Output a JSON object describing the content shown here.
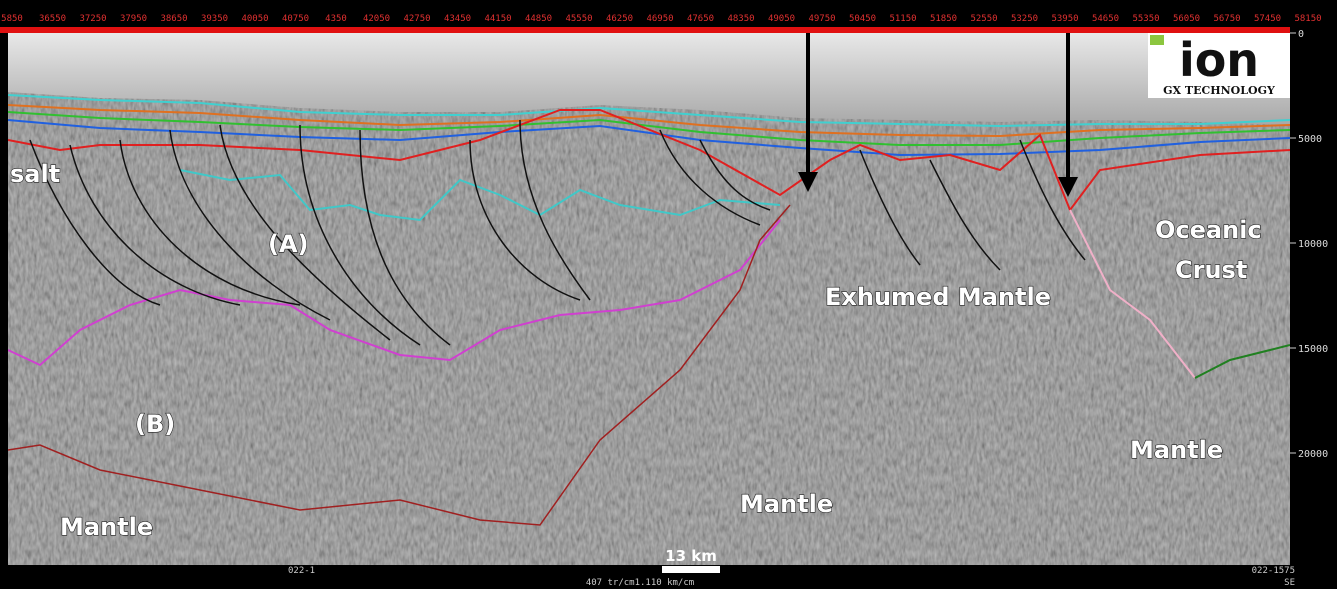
{
  "top_axis": {
    "labels": [
      "5850",
      "36550",
      "37250",
      "37950",
      "38650",
      "39350",
      "40050",
      "40750",
      "4350",
      "42050",
      "42750",
      "43450",
      "44150",
      "44850",
      "45550",
      "46250",
      "46950",
      "47650",
      "48350",
      "49050",
      "49750",
      "50450",
      "51150",
      "51850",
      "52550",
      "53250",
      "53950",
      "54650",
      "55350",
      "56050",
      "56750",
      "57450",
      "58150"
    ]
  },
  "depth_axis": {
    "labels": [
      "0",
      "5000",
      "10000",
      "15000",
      "20000"
    ]
  },
  "logo": {
    "name": "ion",
    "subtitle": "GX TECHNOLOGY"
  },
  "annotations": {
    "salt": "salt",
    "a": "(A)",
    "b": "(B)",
    "mantle_left": "Mantle",
    "mantle_center": "Mantle",
    "exhumed": "Exhumed Mantle",
    "oceanic_crust": [
      "Oceanic",
      "Crust"
    ],
    "mantle_right": "Mantle"
  },
  "scale_bar": {
    "label": "13 km"
  },
  "footer": {
    "left": "022-1",
    "center": "407 tr/cm1.110 km/cm",
    "right": "022-1575",
    "direction": "SE"
  }
}
